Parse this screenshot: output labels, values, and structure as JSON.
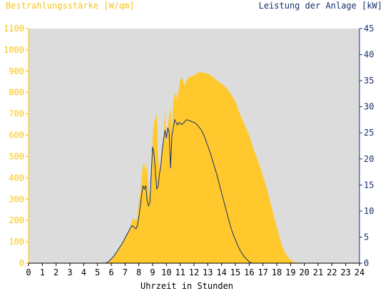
{
  "chart_data": {
    "type": "area",
    "title_left": "Bestrahlungsstärke [W/qm]",
    "title_right": "Leistung der Anlage [kW]",
    "xlabel": "Uhrzeit in Stunden",
    "xlim": [
      0,
      24
    ],
    "x_ticks": [
      "0",
      "1",
      "2",
      "3",
      "4",
      "5",
      "6",
      "7",
      "8",
      "9",
      "10",
      "11",
      "12",
      "13",
      "14",
      "15",
      "16",
      "17",
      "18",
      "19",
      "20",
      "21",
      "22",
      "23",
      "24"
    ],
    "y_left_lim": [
      0,
      1100
    ],
    "y_left_ticks": [
      "0",
      "100",
      "200",
      "300",
      "400",
      "500",
      "600",
      "700",
      "800",
      "900",
      "1000",
      "1100"
    ],
    "y_right_lim": [
      0,
      45
    ],
    "y_right_ticks": [
      "0",
      "5",
      "10",
      "15",
      "20",
      "25",
      "30",
      "35",
      "40",
      "45"
    ],
    "grid": false,
    "colors": {
      "irradiance": "#ffc92e",
      "power": "#16306b",
      "plot_bg": "#dcdcdc",
      "left_axis": "#f7c51b",
      "right_axis": "#16306b"
    },
    "series": [
      {
        "axis": "left",
        "color": "#ffc92e",
        "x": [
          0,
          5.6,
          5.8,
          6.0,
          6.2,
          6.4,
          6.6,
          6.8,
          7.0,
          7.2,
          7.4,
          7.5,
          7.6,
          7.8,
          7.9,
          8.0,
          8.1,
          8.2,
          8.3,
          8.4,
          8.5,
          8.6,
          8.7,
          8.8,
          8.9,
          9.0,
          9.1,
          9.2,
          9.3,
          9.4,
          9.5,
          9.6,
          9.7,
          9.8,
          9.9,
          10.0,
          10.1,
          10.2,
          10.3,
          10.4,
          10.5,
          10.6,
          10.7,
          10.8,
          10.9,
          11.0,
          11.1,
          11.2,
          11.3,
          11.4,
          11.5,
          11.6,
          11.8,
          12.0,
          12.2,
          12.4,
          12.6,
          12.8,
          13.0,
          13.2,
          13.4,
          13.6,
          13.8,
          14.0,
          14.2,
          14.4,
          14.6,
          14.8,
          15.0,
          15.2,
          15.4,
          15.6,
          15.8,
          16.0,
          16.2,
          16.4,
          16.6,
          16.8,
          17.0,
          17.2,
          17.4,
          17.6,
          17.8,
          18.0,
          18.2,
          18.4,
          18.6,
          18.8,
          19.0,
          19.2,
          19.4,
          19.6,
          24
        ],
        "values": [
          0,
          0,
          8,
          20,
          35,
          55,
          75,
          95,
          120,
          145,
          170,
          200,
          210,
          200,
          220,
          280,
          330,
          400,
          460,
          470,
          430,
          460,
          340,
          310,
          380,
          580,
          660,
          680,
          700,
          500,
          430,
          480,
          540,
          600,
          720,
          560,
          640,
          690,
          730,
          610,
          760,
          790,
          800,
          760,
          820,
          860,
          870,
          860,
          830,
          850,
          860,
          870,
          875,
          880,
          890,
          895,
          895,
          890,
          890,
          880,
          870,
          860,
          850,
          840,
          830,
          820,
          800,
          780,
          760,
          720,
          690,
          660,
          630,
          600,
          560,
          520,
          490,
          450,
          410,
          370,
          320,
          270,
          220,
          170,
          120,
          80,
          50,
          30,
          15,
          8,
          3,
          0,
          0
        ]
      },
      {
        "axis": "right",
        "color": "#16306b",
        "x": [
          0,
          5.6,
          5.8,
          6.0,
          6.2,
          6.4,
          6.6,
          6.8,
          7.0,
          7.2,
          7.4,
          7.5,
          7.6,
          7.8,
          7.9,
          8.0,
          8.1,
          8.2,
          8.3,
          8.4,
          8.5,
          8.6,
          8.7,
          8.8,
          8.9,
          9.0,
          9.1,
          9.2,
          9.3,
          9.4,
          9.5,
          9.6,
          9.7,
          9.8,
          9.9,
          10.0,
          10.1,
          10.2,
          10.3,
          10.4,
          10.5,
          10.6,
          10.7,
          10.8,
          10.9,
          11.0,
          11.1,
          11.2,
          11.3,
          11.4,
          11.5,
          11.6,
          11.8,
          12.0,
          12.2,
          12.4,
          12.6,
          12.8,
          13.0,
          13.2,
          13.4,
          13.6,
          13.8,
          14.0,
          14.2,
          14.4,
          14.6,
          14.8,
          15.0,
          15.2,
          15.4,
          15.6,
          15.8,
          16.0,
          16.2,
          16.4,
          16.6,
          16.8,
          17.0,
          17.2,
          17.4,
          17.6,
          17.8,
          18.0,
          18.2,
          18.4,
          18.6,
          18.8,
          19.0,
          19.2,
          19.4,
          19.6,
          24
        ],
        "values": [
          0,
          0,
          0.3,
          0.8,
          1.4,
          2.2,
          3.0,
          3.8,
          4.8,
          5.8,
          6.8,
          7.2,
          7.0,
          6.6,
          7.2,
          8.8,
          10.8,
          13.0,
          14.8,
          14.2,
          14.9,
          12.0,
          11.0,
          11.6,
          17.2,
          22.3,
          21.0,
          17.5,
          14.2,
          14.8,
          17.2,
          18.8,
          21.8,
          23.8,
          25.5,
          24.0,
          26.0,
          25.0,
          18.2,
          24.5,
          26.0,
          27.5,
          27.0,
          26.5,
          27.0,
          26.8,
          26.6,
          26.8,
          27.0,
          27.4,
          27.5,
          27.4,
          27.2,
          27.0,
          26.6,
          26.0,
          25.2,
          24.0,
          22.5,
          21.0,
          19.2,
          17.5,
          15.5,
          13.5,
          11.5,
          9.5,
          7.5,
          5.8,
          4.5,
          3.2,
          2.2,
          1.4,
          0.8,
          0.3,
          0,
          0,
          0,
          0,
          0,
          0,
          0,
          0,
          0,
          0,
          0,
          0,
          0,
          0,
          0,
          0,
          0,
          0,
          0
        ]
      }
    ]
  }
}
